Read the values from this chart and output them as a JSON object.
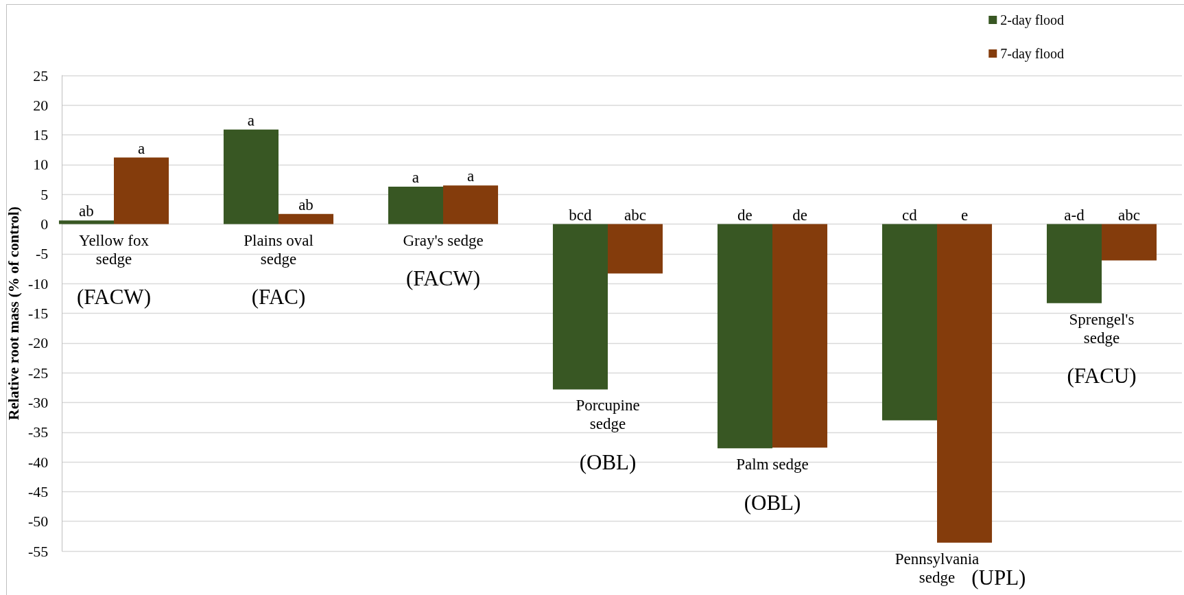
{
  "chart_data": {
    "type": "bar",
    "ylabel": "Relative root mass (% of control)",
    "categories": [
      "Yellow fox sedge",
      "Plains oval sedge",
      "Gray's sedge",
      "Porcupine sedge",
      "Palm sedge",
      "Pennsylvania sedge",
      "Sprengel's sedge"
    ],
    "series": [
      {
        "name": "2-day flood",
        "color": "#385723",
        "values": [
          0.6,
          15.9,
          6.3,
          -27.8,
          -37.7,
          -33.0,
          -13.3
        ],
        "value_labels": [
          "ab",
          "a",
          "a",
          "bcd",
          "de",
          "cd",
          "a-d"
        ]
      },
      {
        "name": "7-day flood",
        "color": "#843c0c",
        "values": [
          11.2,
          1.7,
          6.5,
          -8.3,
          -37.6,
          -53.6,
          -6.1
        ],
        "value_labels": [
          "a",
          "ab",
          "a",
          "abc",
          "de",
          "e",
          "abc"
        ]
      }
    ],
    "ylim": [
      -55,
      25
    ],
    "yticks": [
      -55,
      -50,
      -45,
      -40,
      -35,
      -30,
      -25,
      -20,
      -15,
      -10,
      -5,
      0,
      5,
      10,
      15,
      20,
      25
    ],
    "grid": "y",
    "legend": "top right",
    "annotations": [
      "(FACW)",
      "(FAC)",
      "(FACW)",
      "(OBL)",
      "(OBL)",
      "(UPL)",
      "(FACU)"
    ]
  }
}
